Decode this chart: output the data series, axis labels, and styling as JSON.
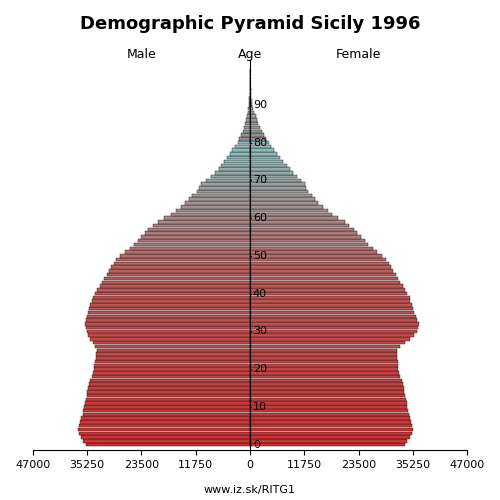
{
  "title": "Demographic Pyramid Sicily 1996",
  "label_left": "Male",
  "label_center": "Age",
  "label_right": "Female",
  "footer": "www.iz.sk/RITG1",
  "xlim": 47000,
  "ages": [
    0,
    1,
    2,
    3,
    4,
    5,
    6,
    7,
    8,
    9,
    10,
    11,
    12,
    13,
    14,
    15,
    16,
    17,
    18,
    19,
    20,
    21,
    22,
    23,
    24,
    25,
    26,
    27,
    28,
    29,
    30,
    31,
    32,
    33,
    34,
    35,
    36,
    37,
    38,
    39,
    40,
    41,
    42,
    43,
    44,
    45,
    46,
    47,
    48,
    49,
    50,
    51,
    52,
    53,
    54,
    55,
    56,
    57,
    58,
    59,
    60,
    61,
    62,
    63,
    64,
    65,
    66,
    67,
    68,
    69,
    70,
    71,
    72,
    73,
    74,
    75,
    76,
    77,
    78,
    79,
    80,
    81,
    82,
    83,
    84,
    85,
    86,
    87,
    88,
    89,
    90,
    91,
    92,
    93,
    94,
    95,
    96,
    97,
    98,
    99
  ],
  "male": [
    35500,
    36000,
    36500,
    37000,
    37200,
    37000,
    36800,
    36500,
    36200,
    36000,
    35800,
    35700,
    35500,
    35300,
    35200,
    35000,
    34800,
    34500,
    34200,
    34000,
    33800,
    33700,
    33500,
    33300,
    33200,
    33000,
    33500,
    34000,
    34500,
    35000,
    35200,
    35400,
    35600,
    35500,
    35300,
    35100,
    34800,
    34500,
    34200,
    34000,
    33500,
    33000,
    32500,
    32000,
    31500,
    31000,
    30500,
    30000,
    29500,
    29000,
    28000,
    27000,
    26000,
    25000,
    24200,
    23500,
    22800,
    22000,
    21000,
    20000,
    18500,
    17000,
    16000,
    15000,
    14000,
    13200,
    12500,
    11500,
    11000,
    10500,
    9500,
    8500,
    7500,
    6800,
    6200,
    5600,
    5000,
    4400,
    3800,
    3200,
    2700,
    2300,
    1900,
    1550,
    1250,
    1000,
    800,
    620,
    470,
    350,
    240,
    170,
    110,
    75,
    48,
    30,
    17,
    9,
    4,
    1
  ],
  "female": [
    33500,
    34000,
    34500,
    35000,
    35200,
    35000,
    34800,
    34500,
    34300,
    34100,
    34000,
    33900,
    33800,
    33600,
    33400,
    33200,
    33000,
    32800,
    32500,
    32300,
    32100,
    32000,
    31900,
    31800,
    31700,
    31800,
    32500,
    33500,
    34500,
    35500,
    36000,
    36300,
    36500,
    36200,
    35800,
    35500,
    35200,
    35000,
    34700,
    34500,
    34000,
    33500,
    33000,
    32500,
    32000,
    31500,
    31000,
    30500,
    30000,
    29500,
    28500,
    27500,
    26500,
    25500,
    24800,
    24000,
    23200,
    22500,
    21500,
    20500,
    19000,
    17800,
    16800,
    15800,
    14700,
    14000,
    13500,
    12500,
    12200,
    11800,
    11000,
    10200,
    9400,
    8600,
    7900,
    7200,
    6500,
    5800,
    5200,
    4600,
    4000,
    3500,
    3000,
    2600,
    2200,
    1800,
    1500,
    1200,
    950,
    720,
    520,
    370,
    265,
    185,
    125,
    80,
    50,
    28,
    14,
    5
  ],
  "yticks": [
    0,
    10,
    20,
    30,
    40,
    50,
    60,
    70,
    80,
    90
  ],
  "xticks_vals": [
    -47000,
    -35250,
    -23500,
    -11750,
    0,
    11750,
    23500,
    35250,
    47000
  ],
  "xticks_labels": [
    "47000",
    "35250",
    "23500",
    "11750",
    "0",
    "11750",
    "23500",
    "35250",
    "47000"
  ],
  "color_young": "#cc3333",
  "color_mid": "#c87878",
  "color_old": "#b89898",
  "color_very_old": "#a0a0a0",
  "bar_edge_color": "#111111",
  "background": "#ffffff",
  "title_fontsize": 13,
  "label_fontsize": 9,
  "tick_fontsize": 8
}
